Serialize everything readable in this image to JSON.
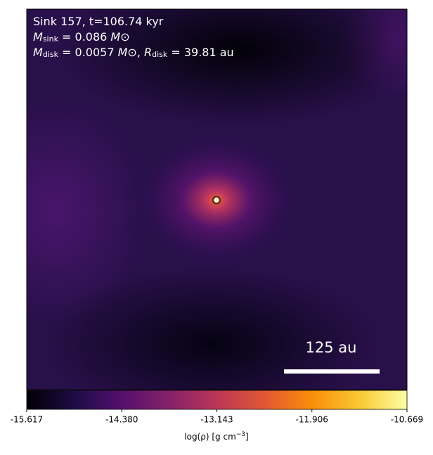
{
  "chart_data": {
    "type": "density-map",
    "annotations": [
      [
        "Sink 157, t=106.74 kyr"
      ],
      [
        "M",
        "sink",
        " = 0.086 ",
        "M",
        "⊙"
      ],
      [
        "M",
        "disk",
        " = 0.0057 ",
        "M",
        "⊙",
        ", ",
        "R",
        "disk",
        " = 39.81 au"
      ]
    ],
    "scale_bar_label": "125 au",
    "colorbar": {
      "label": [
        "log(ρ) [g cm",
        "−3",
        "]"
      ],
      "cmap": "inferno",
      "lim": [
        -15.617,
        -10.669
      ],
      "ticks": [
        -15.617,
        {
          "value": -14.38,
          "label": "-14.380"
        },
        -13.143,
        -11.906,
        -10.669
      ]
    }
  }
}
